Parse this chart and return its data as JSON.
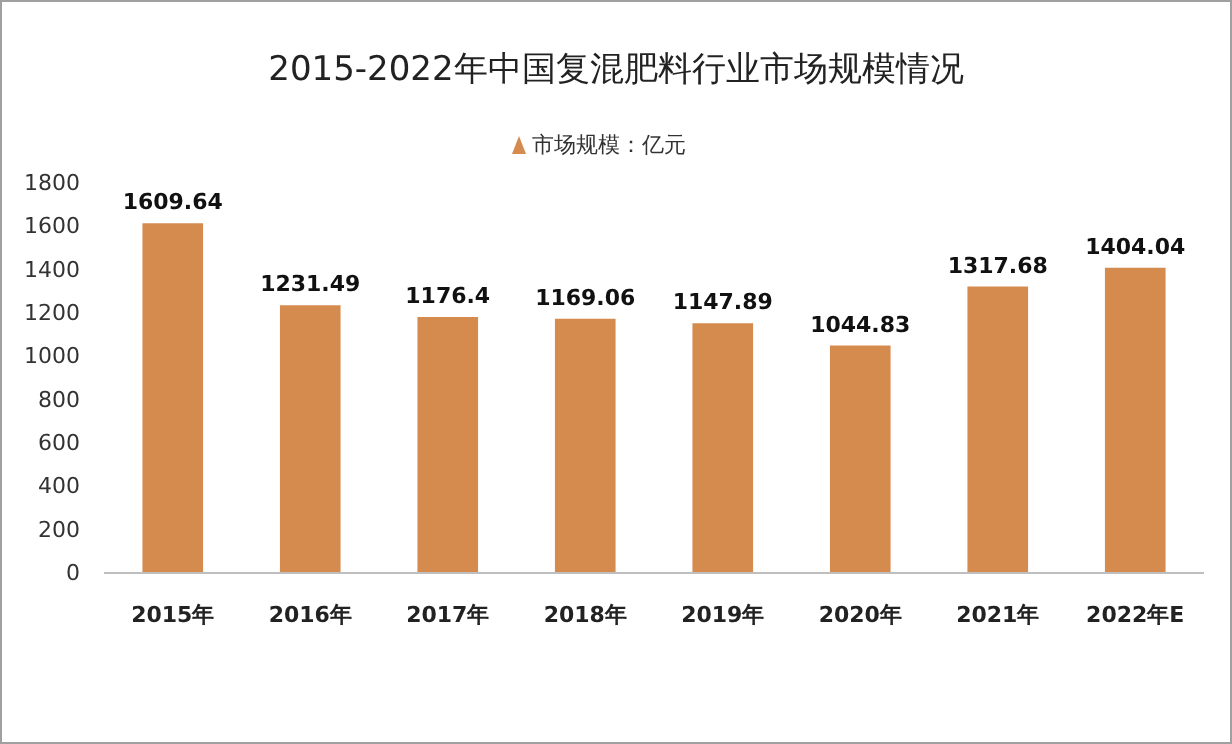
{
  "chart_data": {
    "type": "bar",
    "title": "2015-2022年中国复混肥料行业市场规模情况",
    "categories": [
      "2015年",
      "2016年",
      "2017年",
      "2018年",
      "2019年",
      "2020年",
      "2021年",
      "2022年E"
    ],
    "series": [
      {
        "name": "市场规模：亿元",
        "color": "#d58a4e",
        "values": [
          1609.64,
          1231.49,
          1176.4,
          1169.06,
          1147.89,
          1044.83,
          1317.68,
          1404.04
        ]
      }
    ],
    "ylim": [
      0,
      1800
    ],
    "yticks": [
      0,
      200,
      400,
      600,
      800,
      1000,
      1200,
      1400,
      1600,
      1800
    ],
    "data_labels": true,
    "legend": "top"
  }
}
